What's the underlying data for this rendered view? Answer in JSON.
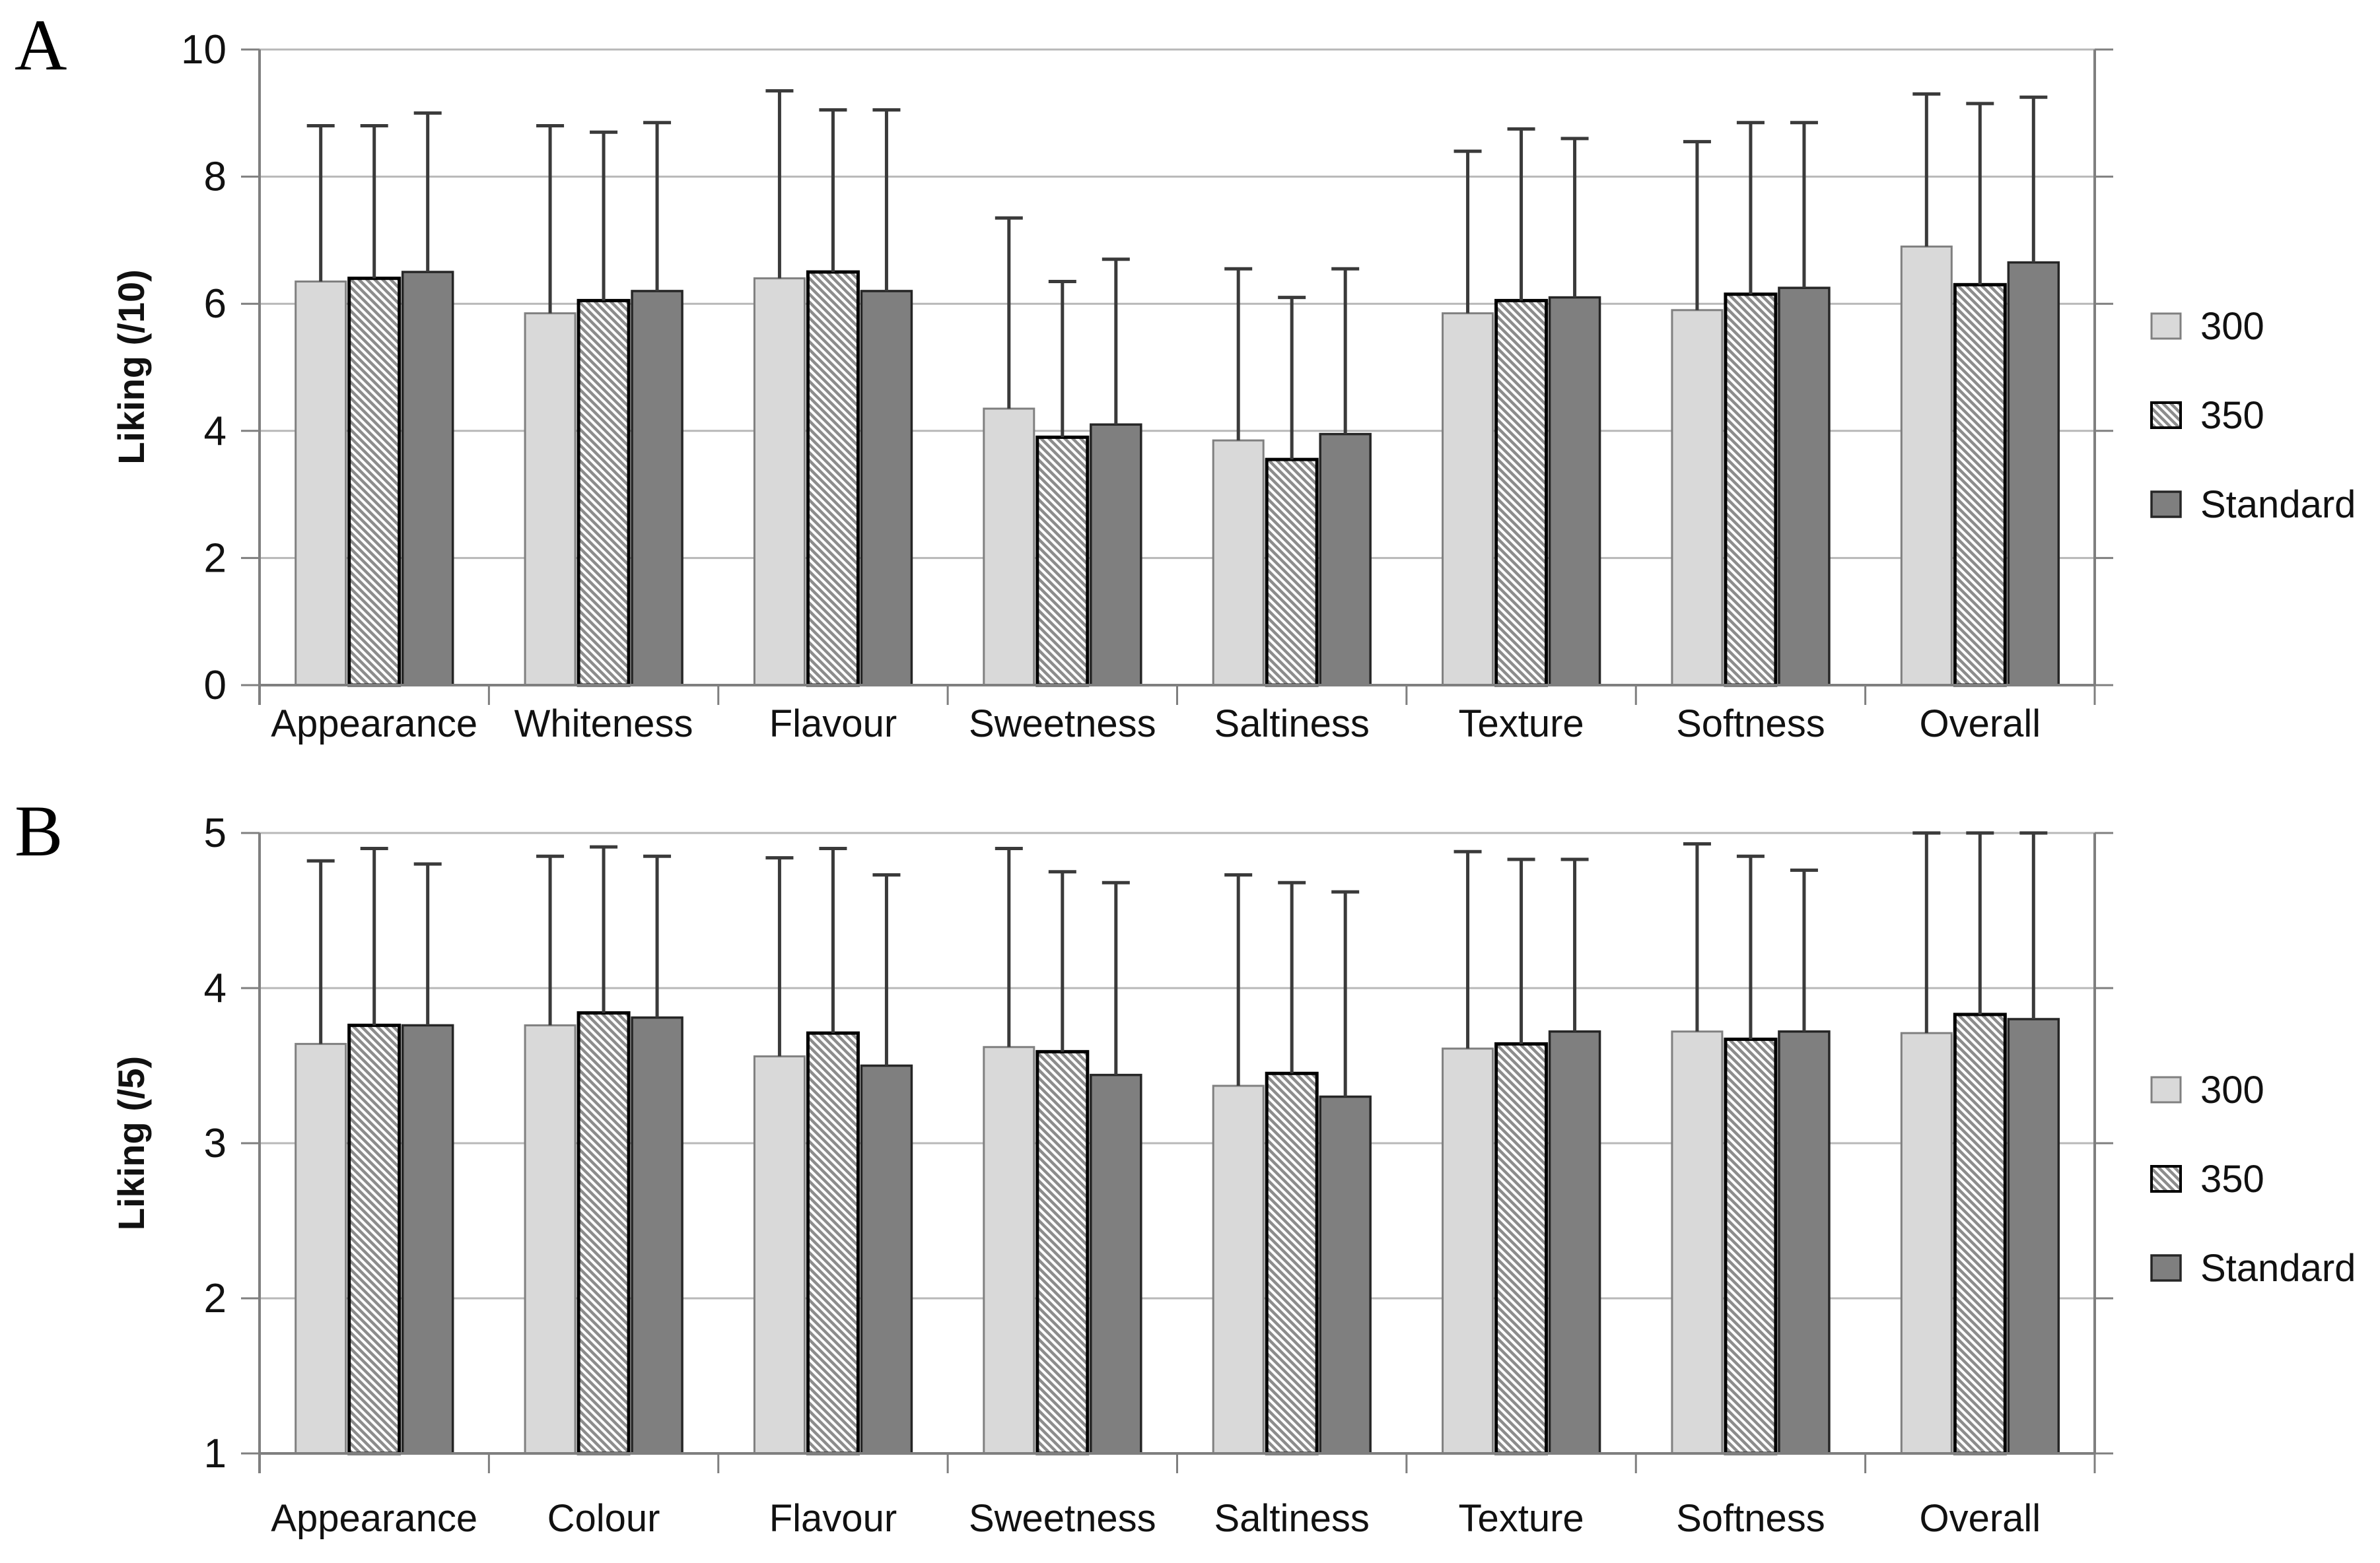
{
  "page": {
    "background": "#ffffff"
  },
  "styles": {
    "grid_color": "#b8b8b8",
    "axis_color": "#7f7f7f",
    "error_bar_color": "#3a3a3a",
    "text_color": "#111111",
    "hatch_line_color": "#8c8c8c",
    "series_styles": [
      {
        "name": "300",
        "fill": "#d9d9d9",
        "stroke": "#808080",
        "stroke_width": 3,
        "hatch": false
      },
      {
        "name": "350",
        "fill": "#ffffff",
        "stroke": "#000000",
        "stroke_width": 5,
        "hatch": true
      },
      {
        "name": "Standard",
        "fill": "#7f7f7f",
        "stroke": "#262626",
        "stroke_width": 3.5,
        "hatch": false
      }
    ]
  },
  "chart_data": [
    {
      "type": "bar",
      "panel_label": "A",
      "title": "",
      "xlabel": "",
      "ylabel": "Liking (/10)",
      "ylim": [
        0,
        10
      ],
      "yticks": [
        0,
        2,
        4,
        6,
        8,
        10
      ],
      "grid": true,
      "error_bars": "upper",
      "legend_position": "right",
      "legend": [
        "300",
        "350",
        "Standard"
      ],
      "categories": [
        "Appearance",
        "Whiteness",
        "Flavour",
        "Sweetness",
        "Saltiness",
        "Texture",
        "Softness",
        "Overall"
      ],
      "series": [
        {
          "name": "300",
          "values": [
            6.35,
            5.85,
            6.4,
            4.35,
            3.85,
            5.85,
            5.9,
            6.9
          ],
          "error_top": [
            8.8,
            8.8,
            9.35,
            7.35,
            6.55,
            8.4,
            8.55,
            9.3
          ]
        },
        {
          "name": "350",
          "values": [
            6.4,
            6.05,
            6.5,
            3.9,
            3.55,
            6.05,
            6.15,
            6.3
          ],
          "error_top": [
            8.8,
            8.7,
            9.05,
            6.35,
            6.1,
            8.75,
            8.85,
            9.15
          ]
        },
        {
          "name": "Standard",
          "values": [
            6.5,
            6.2,
            6.2,
            4.1,
            3.95,
            6.1,
            6.25,
            6.65
          ],
          "error_top": [
            9.0,
            8.85,
            9.05,
            6.7,
            6.55,
            8.6,
            8.85,
            9.25
          ]
        }
      ]
    },
    {
      "type": "bar",
      "panel_label": "B",
      "title": "",
      "xlabel": "",
      "ylabel": "Liking (/5)",
      "ylim": [
        1,
        5
      ],
      "yticks": [
        1,
        2,
        3,
        4,
        5
      ],
      "grid": true,
      "error_bars": "upper",
      "legend_position": "right",
      "legend": [
        "300",
        "350",
        "Standard"
      ],
      "categories": [
        "Appearance",
        "Colour",
        "Flavour",
        "Sweetness",
        "Saltiness",
        "Texture",
        "Softness",
        "Overall"
      ],
      "series": [
        {
          "name": "300",
          "values": [
            3.64,
            3.76,
            3.56,
            3.62,
            3.37,
            3.61,
            3.72,
            3.71
          ],
          "error_top": [
            4.82,
            4.85,
            4.84,
            4.9,
            4.73,
            4.88,
            4.93,
            5.0
          ]
        },
        {
          "name": "350",
          "values": [
            3.76,
            3.84,
            3.71,
            3.59,
            3.45,
            3.64,
            3.67,
            3.83
          ],
          "error_top": [
            4.9,
            4.91,
            4.9,
            4.75,
            4.68,
            4.83,
            4.85,
            5.0
          ]
        },
        {
          "name": "Standard",
          "values": [
            3.76,
            3.81,
            3.5,
            3.44,
            3.3,
            3.72,
            3.72,
            3.8
          ],
          "error_top": [
            4.8,
            4.85,
            4.73,
            4.68,
            4.62,
            4.83,
            4.76,
            5.0
          ]
        }
      ]
    }
  ]
}
